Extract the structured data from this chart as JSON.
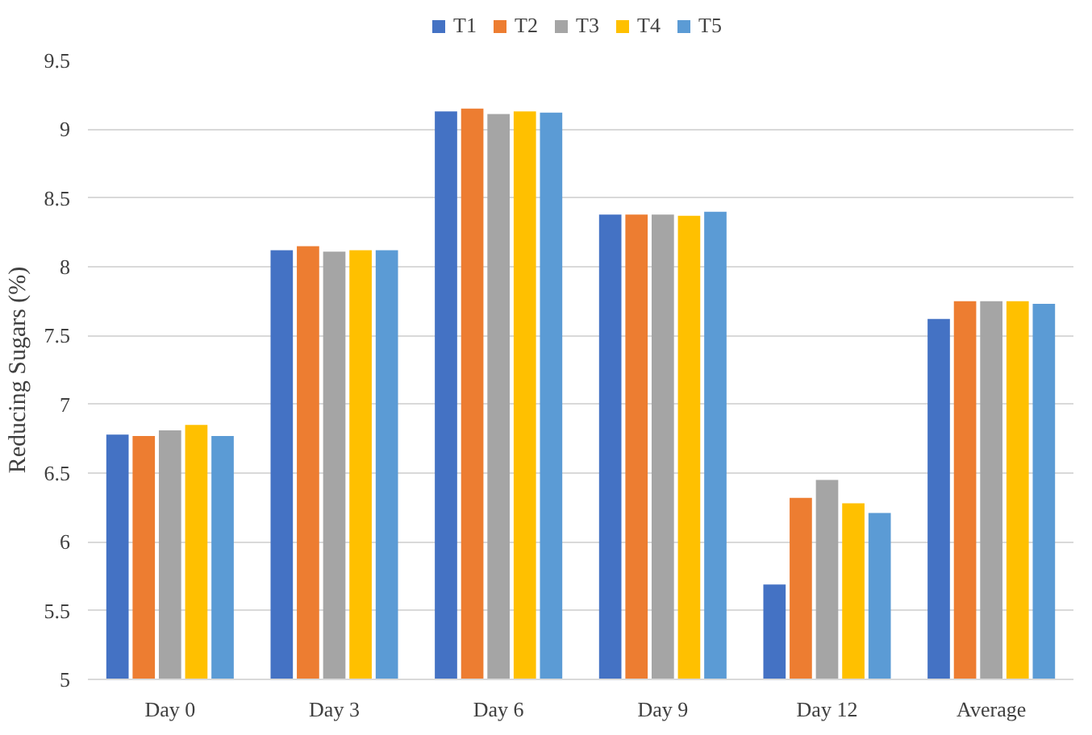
{
  "chart_data": {
    "type": "bar",
    "ylabel": "Reducing Sugars (%)",
    "categories": [
      "Day 0",
      "Day 3",
      "Day 6",
      "Day 9",
      "Day 12",
      "Average"
    ],
    "series": [
      {
        "name": "T1",
        "color": "#4472c4",
        "values": [
          6.78,
          8.12,
          9.13,
          8.38,
          5.69,
          7.62
        ]
      },
      {
        "name": "T2",
        "color": "#ed7d31",
        "values": [
          6.77,
          8.15,
          9.15,
          8.38,
          6.32,
          7.75
        ]
      },
      {
        "name": "T3",
        "color": "#a5a5a5",
        "values": [
          6.81,
          8.11,
          9.11,
          8.38,
          6.45,
          7.75
        ]
      },
      {
        "name": "T4",
        "color": "#ffc000",
        "values": [
          6.85,
          8.12,
          9.13,
          8.37,
          6.28,
          7.75
        ]
      },
      {
        "name": "T5",
        "color": "#5b9bd5",
        "values": [
          6.77,
          8.12,
          9.12,
          8.4,
          6.21,
          7.73
        ]
      }
    ],
    "ylim": [
      5,
      9.5
    ],
    "yticks": [
      5,
      5.5,
      6,
      6.5,
      7,
      7.5,
      8,
      8.5,
      9,
      9.5
    ],
    "grid": "y",
    "legend": "top"
  }
}
